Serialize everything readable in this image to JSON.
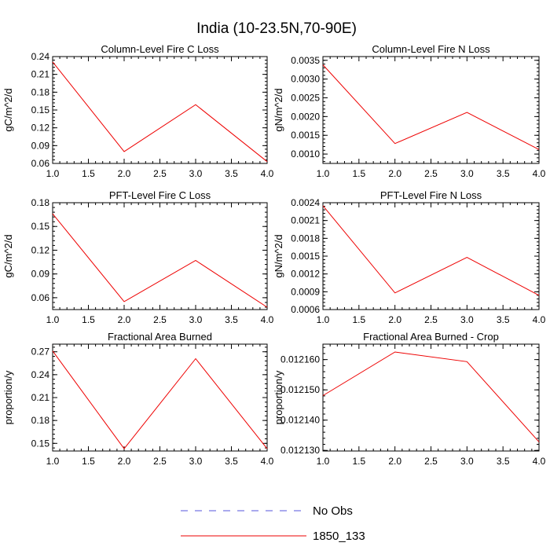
{
  "title": "India (10-23.5N,70-90E)",
  "chart_data": [
    {
      "type": "line",
      "title": "Column-Level Fire C Loss",
      "ylabel": "gC/m^2/d",
      "x": [
        1.0,
        2.0,
        3.0,
        4.0
      ],
      "xlim": [
        1.0,
        4.0
      ],
      "xticks": [
        "1.0",
        "1.5",
        "2.0",
        "2.5",
        "3.0",
        "3.5",
        "4.0"
      ],
      "ylim": [
        0.06,
        0.24
      ],
      "yticks": [
        "0.06",
        "0.09",
        "0.12",
        "0.15",
        "0.18",
        "0.21",
        "0.24"
      ],
      "series": [
        {
          "name": "1850_133",
          "values": [
            0.231,
            0.08,
            0.159,
            0.063
          ]
        }
      ]
    },
    {
      "type": "line",
      "title": "Column-Level Fire N Loss",
      "ylabel": "gN/m^2/d",
      "x": [
        1.0,
        2.0,
        3.0,
        4.0
      ],
      "xlim": [
        1.0,
        4.0
      ],
      "xticks": [
        "1.0",
        "1.5",
        "2.0",
        "2.5",
        "3.0",
        "3.5",
        "4.0"
      ],
      "ylim": [
        0.00075,
        0.0036
      ],
      "yticks": [
        "0.0010",
        "0.0015",
        "0.0020",
        "0.0025",
        "0.0030",
        "0.0035"
      ],
      "series": [
        {
          "name": "1850_133",
          "values": [
            0.00338,
            0.00128,
            0.00211,
            0.00112
          ]
        }
      ]
    },
    {
      "type": "line",
      "title": "PFT-Level Fire C Loss",
      "ylabel": "gC/m^2/d",
      "x": [
        1.0,
        2.0,
        3.0,
        4.0
      ],
      "xlim": [
        1.0,
        4.0
      ],
      "xticks": [
        "1.0",
        "1.5",
        "2.0",
        "2.5",
        "3.0",
        "3.5",
        "4.0"
      ],
      "ylim": [
        0.045,
        0.18
      ],
      "yticks": [
        "0.06",
        "0.09",
        "0.12",
        "0.15",
        "0.18"
      ],
      "series": [
        {
          "name": "1850_133",
          "values": [
            0.166,
            0.055,
            0.107,
            0.048
          ]
        }
      ]
    },
    {
      "type": "line",
      "title": "PFT-Level Fire N Loss",
      "ylabel": "gN/m^2/d",
      "x": [
        1.0,
        2.0,
        3.0,
        4.0
      ],
      "xlim": [
        1.0,
        4.0
      ],
      "xticks": [
        "1.0",
        "1.5",
        "2.0",
        "2.5",
        "3.0",
        "3.5",
        "4.0"
      ],
      "ylim": [
        0.0006,
        0.0024
      ],
      "yticks": [
        "0.0006",
        "0.0009",
        "0.0012",
        "0.0015",
        "0.0018",
        "0.0021",
        "0.0024"
      ],
      "series": [
        {
          "name": "1850_133",
          "values": [
            0.00235,
            0.00088,
            0.00148,
            0.00084
          ]
        }
      ]
    },
    {
      "type": "line",
      "title": "Fractional Area Burned",
      "ylabel": "proportion/y",
      "x": [
        1.0,
        2.0,
        3.0,
        4.0
      ],
      "xlim": [
        1.0,
        4.0
      ],
      "xticks": [
        "1.0",
        "1.5",
        "2.0",
        "2.5",
        "3.0",
        "3.5",
        "4.0"
      ],
      "ylim": [
        0.14,
        0.28
      ],
      "yticks": [
        "0.15",
        "0.18",
        "0.21",
        "0.24",
        "0.27"
      ],
      "series": [
        {
          "name": "1850_133",
          "values": [
            0.271,
            0.143,
            0.261,
            0.143
          ]
        }
      ]
    },
    {
      "type": "line",
      "title": "Fractional Area Burned - Crop",
      "ylabel": "proportion/y",
      "x": [
        1.0,
        2.0,
        3.0,
        4.0
      ],
      "xlim": [
        1.0,
        4.0
      ],
      "xticks": [
        "1.0",
        "1.5",
        "2.0",
        "2.5",
        "3.0",
        "3.5",
        "4.0"
      ],
      "ylim": [
        0.0121298,
        0.0121651
      ],
      "yticks": [
        "0.012130",
        "0.012140",
        "0.012150",
        "0.012160"
      ],
      "series": [
        {
          "name": "1850_133",
          "values": [
            0.0121481,
            0.0121625,
            0.0121593,
            0.0121328
          ]
        }
      ]
    }
  ],
  "legend": [
    {
      "label": "No Obs",
      "color": "#5555dd",
      "dash": "dashed"
    },
    {
      "label": "1850_133",
      "color": "#ee0000",
      "dash": "solid"
    }
  ],
  "colors": {
    "series": "#ee0000",
    "obs": "#5555dd"
  }
}
